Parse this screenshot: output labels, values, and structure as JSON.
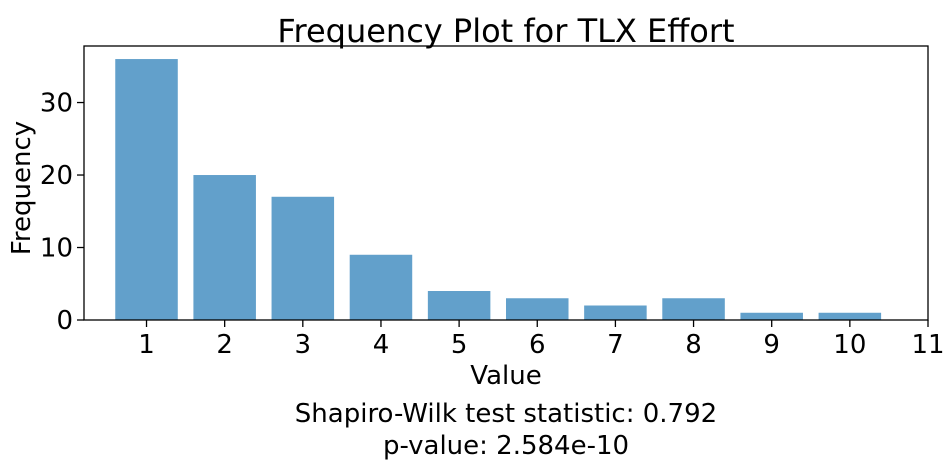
{
  "chart_data": {
    "type": "bar",
    "title": "Frequency Plot for TLX Effort",
    "xlabel": "Value",
    "ylabel": "Frequency",
    "categories": [
      1,
      2,
      3,
      4,
      5,
      6,
      7,
      8,
      9,
      10
    ],
    "values": [
      36,
      20,
      17,
      9,
      4,
      3,
      2,
      3,
      1,
      1
    ],
    "xticks": [
      "1",
      "2",
      "3",
      "4",
      "5",
      "6",
      "7",
      "8",
      "9",
      "10",
      "11"
    ],
    "yticks": [
      "0",
      "10",
      "20",
      "30"
    ],
    "xlim": [
      0.2,
      11
    ],
    "ylim": [
      0,
      37.8
    ],
    "bar_color": "#62a0cb",
    "grid": false,
    "annotation_lines": [
      "Shapiro-Wilk test statistic: 0.792",
      "p-value: 2.584e-10"
    ]
  }
}
